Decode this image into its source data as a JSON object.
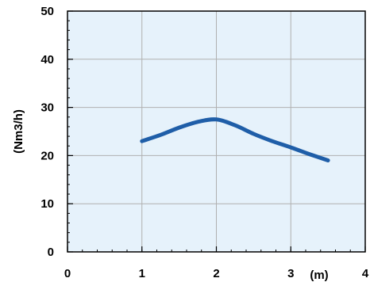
{
  "chart_data": {
    "type": "line",
    "title": "",
    "xlabel": "(m)",
    "ylabel": "(Nm3/h)",
    "xlim": [
      0,
      4
    ],
    "ylim": [
      0,
      50
    ],
    "x_ticks": [
      "0",
      "1",
      "2",
      "3",
      "4"
    ],
    "y_ticks": [
      "0",
      "10",
      "20",
      "30",
      "40",
      "50"
    ],
    "grid": true,
    "series": [
      {
        "x": [
          1.0,
          1.25,
          1.5,
          1.75,
          2.0,
          2.25,
          2.5,
          2.75,
          3.0,
          3.25,
          3.5
        ],
        "y": [
          23.0,
          24.3,
          25.8,
          27.0,
          27.5,
          26.3,
          24.5,
          23.0,
          21.7,
          20.3,
          19.0
        ]
      }
    ],
    "colors": {
      "plot_background": "#e6f2fb",
      "grid": "#b0b0b0",
      "line": "#1f5ea8"
    }
  }
}
